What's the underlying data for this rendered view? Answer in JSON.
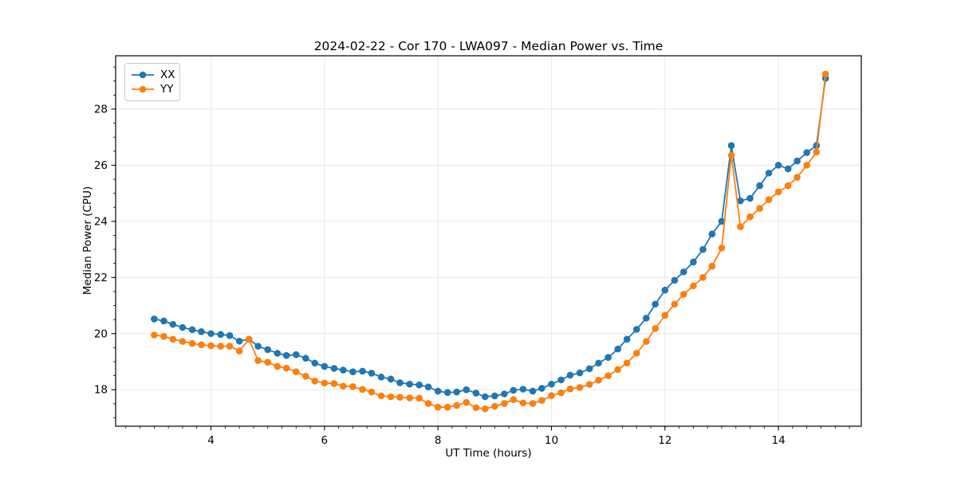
{
  "chart_data": {
    "type": "line",
    "title": "2024-02-22 - Cor 170 - LWA097 - Median Power vs. Time",
    "xlabel": "UT Time (hours)",
    "ylabel": "Median Power (CPU)",
    "xlim": [
      2.32,
      15.46
    ],
    "ylim": [
      16.7,
      29.9
    ],
    "xticks": [
      4,
      6,
      8,
      10,
      12,
      14
    ],
    "yticks": [
      18,
      20,
      22,
      24,
      26,
      28
    ],
    "x_minor_step": 0.25,
    "y_minor_step": 0.5,
    "grid": true,
    "grid_color": "#e5e5e5",
    "legend_position": "upper-left",
    "x": [
      3.0,
      3.17,
      3.33,
      3.5,
      3.67,
      3.83,
      4.0,
      4.17,
      4.33,
      4.5,
      4.67,
      4.83,
      5.0,
      5.17,
      5.33,
      5.5,
      5.67,
      5.83,
      6.0,
      6.17,
      6.33,
      6.5,
      6.67,
      6.83,
      7.0,
      7.17,
      7.33,
      7.5,
      7.67,
      7.83,
      8.0,
      8.17,
      8.33,
      8.5,
      8.67,
      8.83,
      9.0,
      9.17,
      9.33,
      9.5,
      9.67,
      9.83,
      10.0,
      10.17,
      10.33,
      10.5,
      10.67,
      10.83,
      11.0,
      11.17,
      11.33,
      11.5,
      11.67,
      11.83,
      12.0,
      12.17,
      12.33,
      12.5,
      12.67,
      12.83,
      13.0,
      13.17,
      13.33,
      13.5,
      13.67,
      13.83,
      14.0,
      14.17,
      14.33,
      14.5,
      14.67,
      14.83
    ],
    "series": [
      {
        "name": "XX",
        "color": "#1f77b4",
        "values": [
          20.52,
          20.45,
          20.33,
          20.22,
          20.14,
          20.07,
          20.0,
          19.97,
          19.93,
          19.73,
          19.8,
          19.55,
          19.43,
          19.3,
          19.22,
          19.25,
          19.12,
          18.95,
          18.83,
          18.76,
          18.7,
          18.64,
          18.66,
          18.59,
          18.45,
          18.38,
          18.25,
          18.2,
          18.17,
          18.1,
          17.95,
          17.9,
          17.92,
          18.0,
          17.88,
          17.75,
          17.78,
          17.85,
          17.98,
          18.02,
          17.95,
          18.05,
          18.2,
          18.35,
          18.52,
          18.6,
          18.75,
          18.95,
          19.15,
          19.45,
          19.8,
          20.15,
          20.55,
          21.05,
          21.55,
          21.9,
          22.2,
          22.55,
          23.0,
          23.55,
          24.0,
          26.7,
          24.73,
          24.82,
          25.27,
          25.72,
          26.0,
          25.87,
          26.15,
          26.45,
          26.7,
          29.1
        ]
      },
      {
        "name": "YY",
        "color": "#ff7f0e",
        "values": [
          19.95,
          19.9,
          19.8,
          19.72,
          19.65,
          19.6,
          19.57,
          19.55,
          19.55,
          19.38,
          19.8,
          19.04,
          18.98,
          18.83,
          18.77,
          18.64,
          18.48,
          18.31,
          18.24,
          18.22,
          18.13,
          18.11,
          18.01,
          17.92,
          17.78,
          17.75,
          17.73,
          17.71,
          17.7,
          17.51,
          17.38,
          17.38,
          17.44,
          17.55,
          17.36,
          17.32,
          17.41,
          17.51,
          17.65,
          17.53,
          17.51,
          17.62,
          17.79,
          17.89,
          18.03,
          18.08,
          18.19,
          18.34,
          18.5,
          18.72,
          18.95,
          19.3,
          19.72,
          20.18,
          20.65,
          21.05,
          21.4,
          21.7,
          22.0,
          22.4,
          23.05,
          26.35,
          23.81,
          24.16,
          24.46,
          24.77,
          25.05,
          25.27,
          25.57,
          26.0,
          26.47,
          29.25
        ]
      }
    ]
  }
}
